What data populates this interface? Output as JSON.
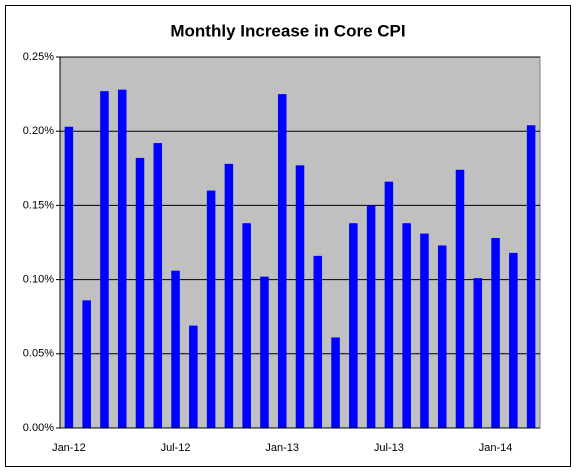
{
  "chart_data": {
    "type": "bar",
    "title": "Monthly Increase in Core CPI",
    "categories": [
      "Jan-12",
      null,
      null,
      null,
      null,
      null,
      "Jul-12",
      null,
      null,
      null,
      null,
      null,
      "Jan-13",
      null,
      null,
      null,
      null,
      null,
      "Jul-13",
      null,
      null,
      null,
      null,
      null,
      "Jan-14",
      null,
      null
    ],
    "values": [
      0.203,
      0.086,
      0.227,
      0.228,
      0.182,
      0.192,
      0.106,
      0.069,
      0.16,
      0.178,
      0.138,
      0.102,
      0.225,
      0.177,
      0.116,
      0.061,
      0.138,
      0.15,
      0.166,
      0.138,
      0.131,
      0.123,
      0.174,
      0.101,
      0.128,
      0.118,
      0.204
    ],
    "color": "#0000ff",
    "ylim": [
      0,
      0.25
    ],
    "yticks": [
      {
        "value": 0,
        "label": "0.00%"
      },
      {
        "value": 0.05,
        "label": "0.05%"
      },
      {
        "value": 0.1,
        "label": "0.10%"
      },
      {
        "value": 0.15,
        "label": "0.15%"
      },
      {
        "value": 0.2,
        "label": "0.20%"
      },
      {
        "value": 0.25,
        "label": "0.25%"
      }
    ],
    "grid": true
  }
}
